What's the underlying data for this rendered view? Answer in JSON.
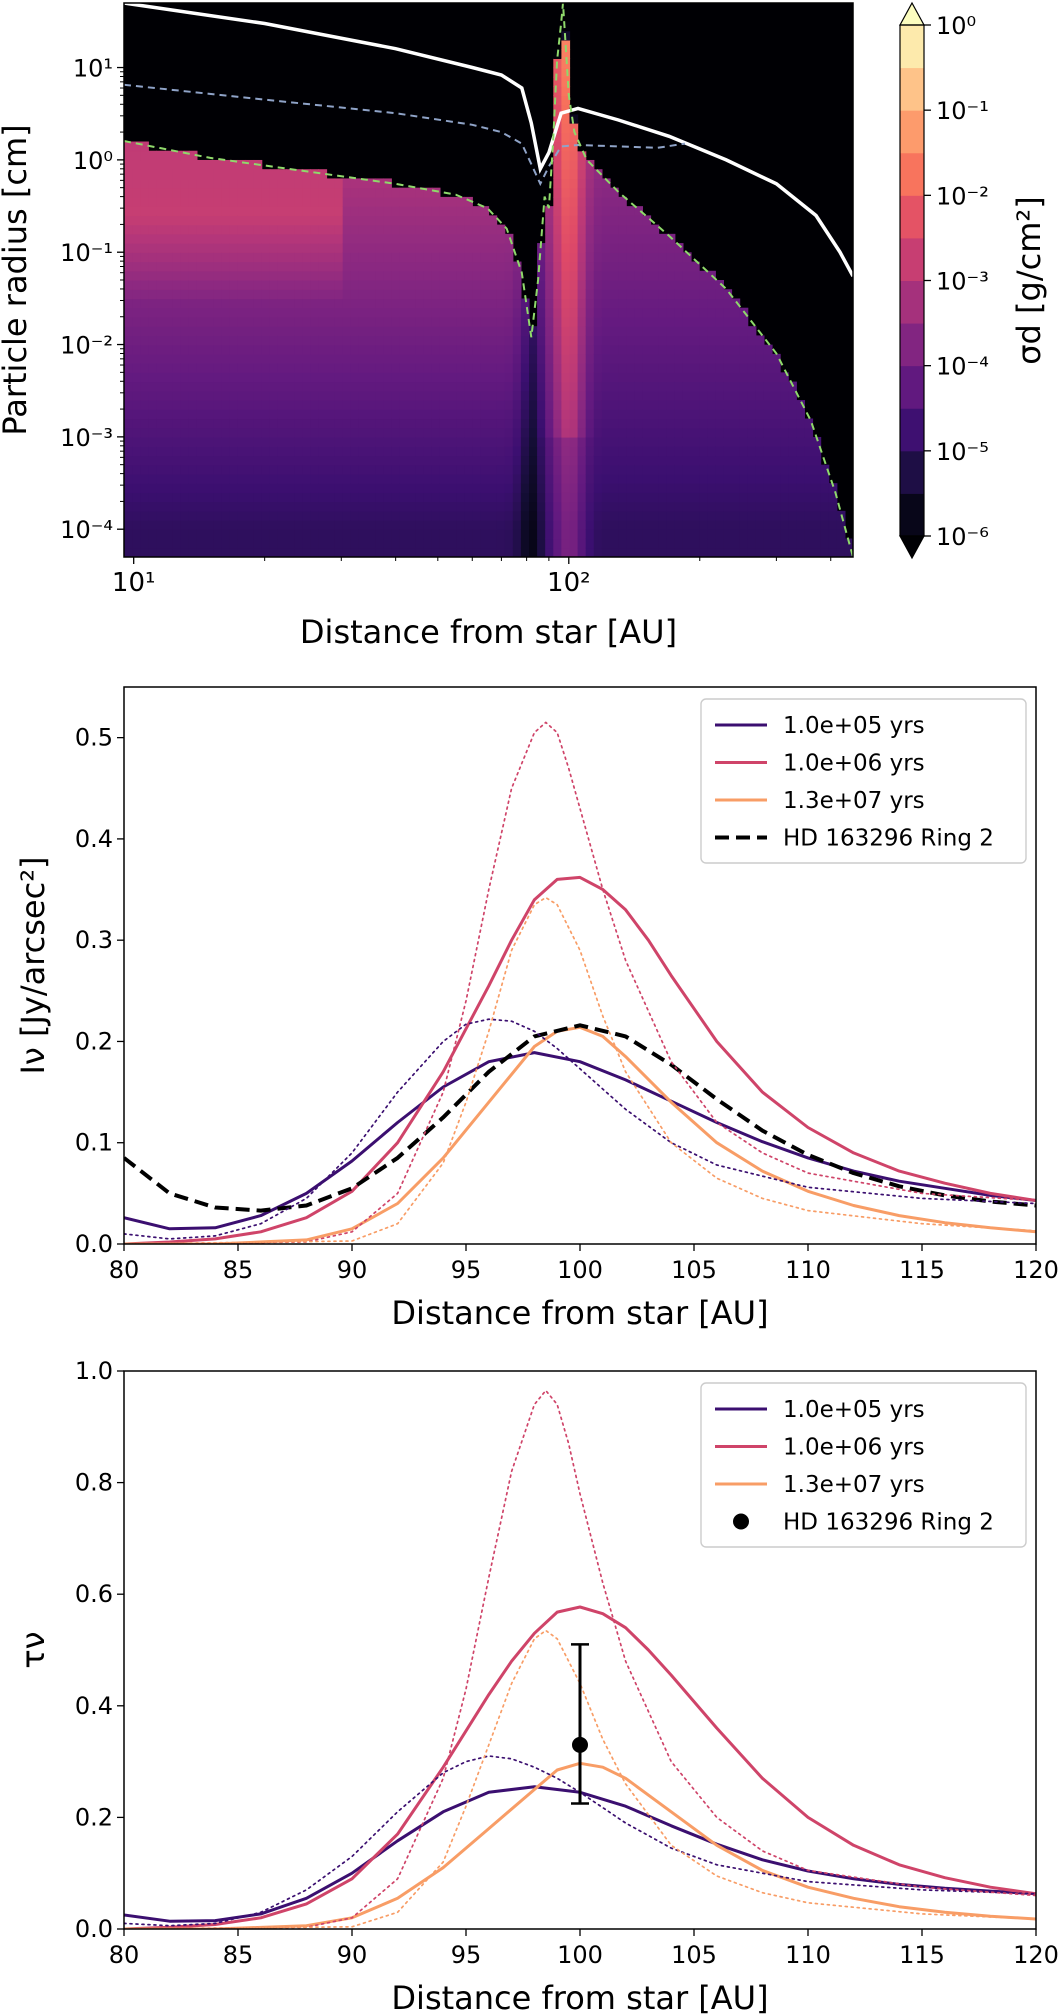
{
  "chart_data": [
    {
      "type": "heatmap",
      "xlabel": "Distance from star [AU]",
      "ylabel": "Particle radius [cm]",
      "xscale": "log",
      "yscale": "log",
      "xlim": [
        9.5,
        450
      ],
      "ylim": [
        5e-05,
        50
      ],
      "xticks": [
        {
          "v": 10,
          "label": "10¹"
        },
        {
          "v": 100,
          "label": "10²"
        }
      ],
      "yticks": [
        {
          "v": 0.0001,
          "label": "10⁻⁴"
        },
        {
          "v": 0.001,
          "label": "10⁻³"
        },
        {
          "v": 0.01,
          "label": "10⁻²"
        },
        {
          "v": 0.1,
          "label": "10⁻¹"
        },
        {
          "v": 1,
          "label": "10⁰"
        },
        {
          "v": 10,
          "label": "10¹"
        }
      ],
      "colorbar": {
        "label": "σd [g/cm²]",
        "range_log10": [
          -6,
          0
        ],
        "ticks": [
          "10⁰",
          "10⁻¹",
          "10⁻²",
          "10⁻³",
          "10⁻⁴",
          "10⁻⁵",
          "10⁻⁶"
        ],
        "colors": [
          "#000004",
          "#140e36",
          "#3b0f70",
          "#641a80",
          "#8c2981",
          "#b73779",
          "#de4968",
          "#f7705c",
          "#fe9f6d",
          "#fecf92",
          "#fcfdbf"
        ]
      },
      "overlays": [
        {
          "style": "white-solid",
          "x": [
            9.5,
            20,
            40,
            60,
            70,
            78,
            82,
            86,
            90,
            96,
            105,
            130,
            170,
            230,
            300,
            370,
            420,
            450
          ],
          "y": [
            50,
            30,
            16,
            10,
            8.3,
            6,
            2.5,
            0.8,
            1.2,
            3.2,
            3.6,
            2.7,
            1.8,
            1.0,
            0.55,
            0.25,
            0.1,
            0.055
          ]
        },
        {
          "style": "blue-dashed",
          "x": [
            9.5,
            20,
            40,
            60,
            70,
            78,
            82,
            86,
            90,
            96,
            105,
            130,
            160,
            185
          ],
          "y": [
            6.5,
            4.5,
            3.2,
            2.4,
            2.0,
            1.5,
            0.9,
            0.55,
            0.85,
            1.4,
            1.45,
            1.4,
            1.35,
            1.5
          ]
        },
        {
          "style": "green-dashed",
          "x": [
            9.5,
            15,
            25,
            40,
            55,
            65,
            72,
            78,
            82,
            85,
            88,
            90,
            92,
            94,
            96,
            97,
            100,
            103,
            110,
            130,
            170,
            230,
            300,
            360,
            410,
            450
          ],
          "y": [
            1.6,
            1.05,
            0.75,
            0.55,
            0.42,
            0.3,
            0.18,
            0.06,
            0.012,
            0.05,
            0.4,
            0.3,
            1.5,
            12,
            30,
            50,
            5,
            2,
            1.0,
            0.45,
            0.15,
            0.04,
            0.008,
            0.0015,
            0.00025,
            5e-05
          ]
        }
      ]
    },
    {
      "type": "line",
      "xlabel": "Distance from star [AU]",
      "ylabel": "Iν [Jy/arcsec²]",
      "xlim": [
        80,
        120
      ],
      "ylim": [
        0,
        0.55
      ],
      "xticks": [
        80,
        85,
        90,
        95,
        100,
        105,
        110,
        115,
        120
      ],
      "yticks": [
        0.0,
        0.1,
        0.2,
        0.3,
        0.4,
        0.5
      ],
      "tick_decimals": 1,
      "legend": "top-right",
      "series": [
        {
          "name": "1.0e+05 yrs",
          "color": "#3b0f70",
          "dash": "solid",
          "x": [
            80,
            82,
            84,
            86,
            88,
            90,
            92,
            94,
            96,
            98,
            100,
            102,
            104,
            106,
            108,
            110,
            112,
            114,
            116,
            118,
            120
          ],
          "y": [
            0.026,
            0.015,
            0.016,
            0.028,
            0.05,
            0.082,
            0.12,
            0.155,
            0.18,
            0.189,
            0.18,
            0.162,
            0.141,
            0.12,
            0.101,
            0.085,
            0.072,
            0.062,
            0.055,
            0.048,
            0.043
          ]
        },
        {
          "name": "1.0e+06 yrs",
          "color": "#cf4469",
          "dash": "solid",
          "x": [
            80,
            82,
            84,
            86,
            88,
            90,
            92,
            94,
            96,
            97,
            98,
            99,
            100,
            101,
            102,
            103,
            104,
            106,
            108,
            110,
            112,
            114,
            116,
            118,
            120
          ],
          "y": [
            0.0,
            0.002,
            0.005,
            0.012,
            0.026,
            0.052,
            0.1,
            0.17,
            0.255,
            0.3,
            0.34,
            0.36,
            0.362,
            0.35,
            0.33,
            0.3,
            0.265,
            0.2,
            0.15,
            0.115,
            0.09,
            0.072,
            0.06,
            0.05,
            0.043
          ]
        },
        {
          "name": "1.3e+07 yrs",
          "color": "#f89d66",
          "dash": "solid",
          "x": [
            80,
            84,
            88,
            90,
            92,
            94,
            96,
            98,
            99,
            100,
            101,
            102,
            104,
            106,
            108,
            110,
            112,
            114,
            116,
            118,
            120
          ],
          "y": [
            0.0,
            0.0,
            0.004,
            0.015,
            0.04,
            0.085,
            0.14,
            0.195,
            0.21,
            0.214,
            0.205,
            0.185,
            0.14,
            0.1,
            0.072,
            0.052,
            0.038,
            0.028,
            0.021,
            0.016,
            0.012
          ]
        },
        {
          "name": "HD 163296 Ring 2",
          "color": "#000000",
          "dash": "dashed",
          "width": 4,
          "x": [
            80,
            82,
            84,
            86,
            88,
            90,
            92,
            94,
            96,
            98,
            100,
            102,
            104,
            106,
            108,
            110,
            112,
            114,
            116,
            118,
            120
          ],
          "y": [
            0.085,
            0.05,
            0.036,
            0.033,
            0.038,
            0.055,
            0.085,
            0.125,
            0.17,
            0.205,
            0.216,
            0.205,
            0.177,
            0.143,
            0.112,
            0.088,
            0.07,
            0.057,
            0.048,
            0.042,
            0.038
          ]
        },
        {
          "color": "#3b0f70",
          "dash": "dotted",
          "width": 1.7,
          "x": [
            80,
            82,
            84,
            86,
            88,
            90,
            92,
            94,
            95,
            96,
            97,
            98,
            99,
            100,
            102,
            104,
            106,
            110,
            115,
            120
          ],
          "y": [
            0.01,
            0.005,
            0.008,
            0.02,
            0.045,
            0.09,
            0.15,
            0.2,
            0.217,
            0.222,
            0.22,
            0.21,
            0.193,
            0.173,
            0.133,
            0.1,
            0.078,
            0.056,
            0.045,
            0.04
          ]
        },
        {
          "color": "#cf4469",
          "dash": "dotted",
          "width": 1.7,
          "x": [
            80,
            88,
            90,
            92,
            94,
            95,
            96,
            97,
            98,
            98.5,
            99,
            99.5,
            100,
            101,
            102,
            104,
            106,
            108,
            110,
            115,
            120
          ],
          "y": [
            0.0,
            0.002,
            0.012,
            0.05,
            0.15,
            0.24,
            0.35,
            0.45,
            0.505,
            0.515,
            0.505,
            0.47,
            0.43,
            0.35,
            0.28,
            0.18,
            0.12,
            0.09,
            0.07,
            0.05,
            0.043
          ]
        },
        {
          "color": "#f89d66",
          "dash": "dotted",
          "width": 1.7,
          "x": [
            80,
            90,
            92,
            94,
            95,
            96,
            97,
            98,
            98.5,
            99,
            100,
            101,
            102,
            104,
            106,
            108,
            110,
            115,
            120
          ],
          "y": [
            0.0,
            0.003,
            0.02,
            0.08,
            0.14,
            0.21,
            0.29,
            0.335,
            0.342,
            0.335,
            0.29,
            0.225,
            0.17,
            0.1,
            0.065,
            0.045,
            0.033,
            0.02,
            0.013
          ]
        }
      ]
    },
    {
      "type": "line",
      "xlabel": "Distance from star [AU]",
      "ylabel": "τν",
      "xlim": [
        80,
        120
      ],
      "ylim": [
        0,
        1.0
      ],
      "xticks": [
        80,
        85,
        90,
        95,
        100,
        105,
        110,
        115,
        120
      ],
      "yticks": [
        0.0,
        0.2,
        0.4,
        0.6,
        0.8,
        1.0
      ],
      "tick_decimals": 1,
      "legend": "top-right",
      "series": [
        {
          "name": "1.0e+05 yrs",
          "color": "#3b0f70",
          "dash": "solid",
          "x": [
            80,
            82,
            84,
            86,
            88,
            90,
            92,
            94,
            96,
            98,
            100,
            102,
            104,
            106,
            108,
            110,
            112,
            114,
            116,
            118,
            120
          ],
          "y": [
            0.025,
            0.014,
            0.015,
            0.027,
            0.055,
            0.1,
            0.158,
            0.21,
            0.245,
            0.255,
            0.245,
            0.22,
            0.185,
            0.152,
            0.124,
            0.104,
            0.09,
            0.08,
            0.073,
            0.068,
            0.063
          ]
        },
        {
          "name": "1.0e+06 yrs",
          "color": "#cf4469",
          "dash": "solid",
          "x": [
            80,
            82,
            84,
            86,
            88,
            90,
            92,
            94,
            96,
            97,
            98,
            99,
            100,
            101,
            102,
            103,
            104,
            106,
            108,
            110,
            112,
            114,
            116,
            118,
            120
          ],
          "y": [
            0.0,
            0.003,
            0.008,
            0.02,
            0.045,
            0.09,
            0.17,
            0.29,
            0.42,
            0.48,
            0.53,
            0.568,
            0.577,
            0.565,
            0.54,
            0.5,
            0.455,
            0.36,
            0.27,
            0.2,
            0.15,
            0.115,
            0.092,
            0.075,
            0.063
          ]
        },
        {
          "name": "1.3e+07 yrs",
          "color": "#f89d66",
          "dash": "solid",
          "x": [
            80,
            84,
            88,
            90,
            92,
            94,
            96,
            98,
            99,
            100,
            101,
            102,
            104,
            106,
            108,
            110,
            112,
            114,
            116,
            118,
            120
          ],
          "y": [
            0.0,
            0.0,
            0.006,
            0.02,
            0.055,
            0.11,
            0.18,
            0.25,
            0.285,
            0.297,
            0.29,
            0.27,
            0.21,
            0.15,
            0.105,
            0.075,
            0.055,
            0.04,
            0.03,
            0.023,
            0.018
          ]
        },
        {
          "color": "#3b0f70",
          "dash": "dotted",
          "width": 1.7,
          "x": [
            80,
            82,
            84,
            86,
            88,
            90,
            92,
            94,
            95,
            96,
            97,
            98,
            99,
            100,
            102,
            104,
            106,
            110,
            115,
            120
          ],
          "y": [
            0.01,
            0.006,
            0.01,
            0.03,
            0.07,
            0.13,
            0.21,
            0.28,
            0.3,
            0.31,
            0.305,
            0.29,
            0.27,
            0.245,
            0.19,
            0.145,
            0.115,
            0.085,
            0.07,
            0.063
          ]
        },
        {
          "color": "#cf4469",
          "dash": "dotted",
          "width": 1.7,
          "x": [
            80,
            88,
            90,
            92,
            94,
            95,
            96,
            97,
            98,
            98.5,
            99,
            99.5,
            100,
            101,
            102,
            104,
            106,
            108,
            110,
            115,
            120
          ],
          "y": [
            0.0,
            0.003,
            0.02,
            0.09,
            0.27,
            0.43,
            0.63,
            0.82,
            0.94,
            0.965,
            0.94,
            0.87,
            0.78,
            0.62,
            0.48,
            0.3,
            0.2,
            0.14,
            0.105,
            0.075,
            0.06
          ]
        },
        {
          "color": "#f89d66",
          "dash": "dotted",
          "width": 1.7,
          "x": [
            80,
            90,
            92,
            94,
            95,
            96,
            97,
            98,
            98.5,
            99,
            100,
            101,
            102,
            104,
            106,
            108,
            110,
            115,
            120
          ],
          "y": [
            0.0,
            0.004,
            0.03,
            0.12,
            0.22,
            0.33,
            0.44,
            0.52,
            0.535,
            0.52,
            0.44,
            0.34,
            0.26,
            0.15,
            0.095,
            0.065,
            0.047,
            0.027,
            0.018
          ]
        }
      ],
      "errorbar": {
        "name": "HD 163296 Ring 2",
        "x": 100,
        "y": 0.33,
        "ylow": 0.225,
        "yhigh": 0.51,
        "color": "#000000"
      }
    }
  ]
}
